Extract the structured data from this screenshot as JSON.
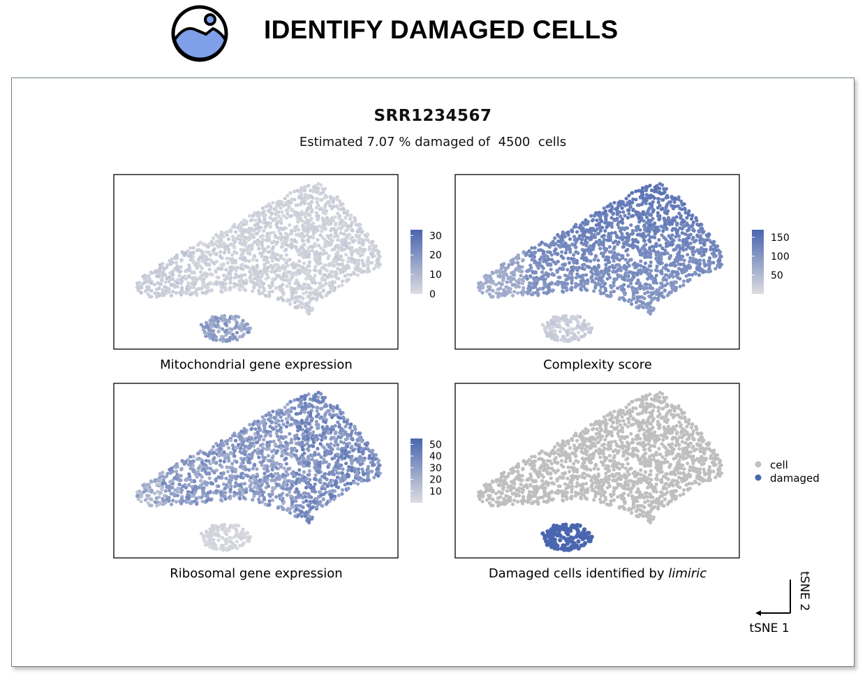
{
  "banner": {
    "title": "IDENTIFY DAMAGED CELLS",
    "logo_icon": "landscape-badge-icon"
  },
  "figure": {
    "title": "SRR1234567",
    "subtitle": "Estimated 7.07 % damaged of  4500  cells",
    "axis_x": "tSNE 1",
    "axis_y": "tSNE 2"
  },
  "colors": {
    "blue": "#4a66b0",
    "light_grey": "#dcdcdf",
    "cell_grey": "#bfbfbf"
  },
  "chart_data": [
    {
      "type": "scatter",
      "title": "",
      "caption": "Mitochondrial gene expression",
      "xlabel": "",
      "ylabel": "",
      "color_scale": {
        "ticks": [
          30,
          20,
          10,
          0
        ],
        "min": 0,
        "max": 33,
        "low": "#dcdcdf",
        "high": "#4a66b0"
      },
      "points": "~2000 cells in a large triangular cluster plus a small damaged cluster; large cluster low values (0-5), small cluster higher (~12-20)"
    },
    {
      "type": "scatter",
      "title": "",
      "caption": "Complexity score",
      "xlabel": "",
      "ylabel": "",
      "color_scale": {
        "ticks": [
          150,
          100,
          50
        ],
        "min": 0,
        "max": 170,
        "low": "#dcdcdf",
        "high": "#4a66b0"
      },
      "points": "large cluster medium-high (~80-160, highest at top), small cluster low (~10-30)"
    },
    {
      "type": "scatter",
      "title": "",
      "caption": "Ribosomal gene expression",
      "xlabel": "",
      "ylabel": "",
      "color_scale": {
        "ticks": [
          50,
          40,
          30,
          20,
          10
        ],
        "min": 0,
        "max": 55,
        "low": "#dcdcdf",
        "high": "#4a66b0"
      },
      "points": "large cluster medium (~20-45), small cluster low (~2-5)"
    },
    {
      "type": "scatter",
      "title": "",
      "caption_prefix": "Damaged cells identified by ",
      "caption_italic": "limiric",
      "xlabel": "",
      "ylabel": "",
      "legend": [
        {
          "name": "cell",
          "color": "#bfbfbf"
        },
        {
          "name": "damaged",
          "color": "#4a66b0"
        }
      ],
      "legend_position": "right",
      "points": "large cluster labelled cell (grey), small cluster labelled damaged (blue)"
    }
  ]
}
